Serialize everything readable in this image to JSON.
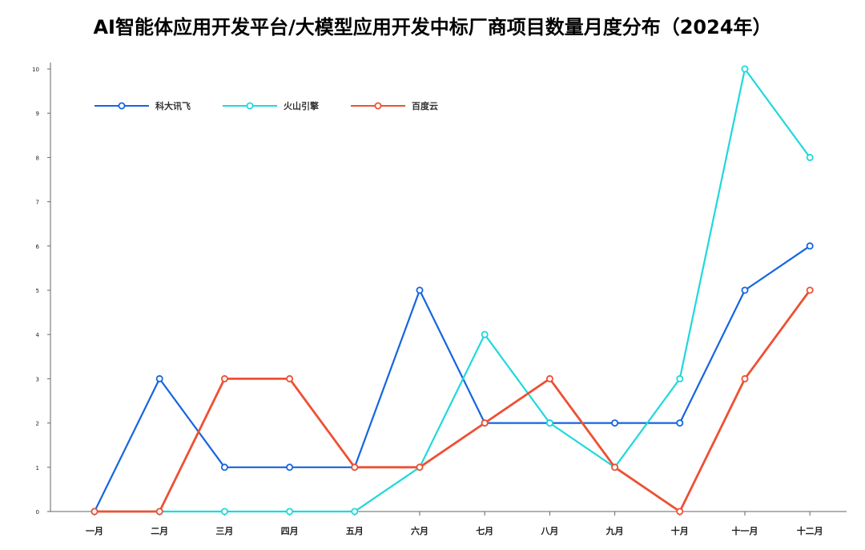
{
  "chart_data": {
    "type": "line",
    "title": "AI智能体应用开发平台/大模型应用开发中标厂商项目数量月度分布（2024年）",
    "xlabel": "",
    "ylabel": "",
    "categories": [
      "一月",
      "二月",
      "三月",
      "四月",
      "五月",
      "六月",
      "七月",
      "八月",
      "九月",
      "十月",
      "十一月",
      "十二月"
    ],
    "yticks": [
      "0",
      "1",
      "2",
      "3",
      "4",
      "5",
      "6",
      "7",
      "8",
      "9",
      "10"
    ],
    "ylim": [
      0,
      10
    ],
    "grid": false,
    "legend_position": "top-left",
    "series": [
      {
        "name": "科大讯飞",
        "color": "#1565e0",
        "values": [
          0,
          3,
          1,
          1,
          1,
          5,
          2,
          2,
          2,
          2,
          5,
          6
        ]
      },
      {
        "name": "火山引擎",
        "color": "#1fd8dc",
        "values": [
          0,
          0,
          0,
          0,
          0,
          1,
          4,
          2,
          1,
          3,
          10,
          8
        ]
      },
      {
        "name": "百度云",
        "color": "#ee5033",
        "values": [
          0,
          0,
          3,
          3,
          1,
          1,
          2,
          3,
          1,
          0,
          3,
          5
        ]
      }
    ]
  }
}
